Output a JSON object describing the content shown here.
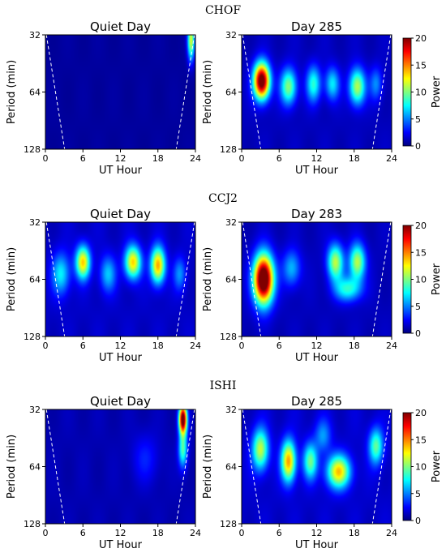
{
  "figure": {
    "colormap": [
      "#00007f",
      "#0000ff",
      "#007fff",
      "#00ffff",
      "#7fff7f",
      "#ffff00",
      "#ff7f00",
      "#ff0000",
      "#7f0000"
    ],
    "dashed_line_color": "#ffffff"
  },
  "chart_data": [
    {
      "type": "heatmap",
      "station": "CHOF",
      "title": "Quiet Day",
      "xlabel": "UT Hour",
      "ylabel": "Period (min)",
      "xticks": [
        "0",
        "6",
        "12",
        "18",
        "24"
      ],
      "yticks": [
        "32",
        "64",
        "128"
      ],
      "xlim": [
        0,
        24
      ],
      "ylim_period": [
        32,
        128
      ],
      "log_y": true,
      "colorbar": null,
      "base": 0.6,
      "blobs": [
        {
          "hour": 23.3,
          "period": 34,
          "power": 11,
          "sx": 0.4,
          "sy": 0.25
        }
      ]
    },
    {
      "type": "heatmap",
      "station": "CHOF",
      "title": "Day 285",
      "xlabel": "UT Hour",
      "ylabel": "Period (min)",
      "xticks": [
        "0",
        "6",
        "12",
        "18",
        "24"
      ],
      "yticks": [
        "32",
        "64",
        "128"
      ],
      "xlim": [
        0,
        24
      ],
      "ylim_period": [
        32,
        128
      ],
      "log_y": true,
      "colorbar": {
        "label": "Power",
        "ticks": [
          "0",
          "5",
          "10",
          "15",
          "20"
        ],
        "range": [
          0,
          20
        ]
      },
      "base": 1.2,
      "blobs": [
        {
          "hour": 3.2,
          "period": 56,
          "power": 21,
          "sx": 0.9,
          "sy": 0.22
        },
        {
          "hour": 7.5,
          "period": 60,
          "power": 9,
          "sx": 0.9,
          "sy": 0.22
        },
        {
          "hour": 11.5,
          "period": 58,
          "power": 7,
          "sx": 0.8,
          "sy": 0.22
        },
        {
          "hour": 14.5,
          "period": 58,
          "power": 6,
          "sx": 0.8,
          "sy": 0.2
        },
        {
          "hour": 18.5,
          "period": 60,
          "power": 10,
          "sx": 0.9,
          "sy": 0.22
        },
        {
          "hour": 21.5,
          "period": 58,
          "power": 4,
          "sx": 0.7,
          "sy": 0.2
        }
      ]
    },
    {
      "type": "heatmap",
      "station": "CCJ2",
      "title": "Quiet Day",
      "xlabel": "UT Hour",
      "ylabel": "Period (min)",
      "xticks": [
        "0",
        "6",
        "12",
        "18",
        "24"
      ],
      "yticks": [
        "32",
        "64",
        "128"
      ],
      "xlim": [
        0,
        24
      ],
      "ylim_period": [
        32,
        128
      ],
      "log_y": true,
      "colorbar": null,
      "base": 1.4,
      "blobs": [
        {
          "hour": 2.5,
          "period": 60,
          "power": 6,
          "sx": 1.0,
          "sy": 0.25
        },
        {
          "hour": 6.0,
          "period": 52,
          "power": 12,
          "sx": 0.8,
          "sy": 0.2
        },
        {
          "hour": 10.0,
          "period": 60,
          "power": 5,
          "sx": 0.9,
          "sy": 0.22
        },
        {
          "hour": 14.0,
          "period": 52,
          "power": 12,
          "sx": 0.9,
          "sy": 0.2
        },
        {
          "hour": 18.0,
          "period": 54,
          "power": 13,
          "sx": 0.8,
          "sy": 0.22
        },
        {
          "hour": 21.5,
          "period": 60,
          "power": 4,
          "sx": 0.7,
          "sy": 0.2
        }
      ]
    },
    {
      "type": "heatmap",
      "station": "CCJ2",
      "title": "Day 283",
      "xlabel": "UT Hour",
      "ylabel": "Period (min)",
      "xticks": [
        "0",
        "6",
        "12",
        "18",
        "24"
      ],
      "yticks": [
        "32",
        "64",
        "128"
      ],
      "xlim": [
        0,
        24
      ],
      "ylim_period": [
        32,
        128
      ],
      "log_y": true,
      "colorbar": {
        "label": "Power",
        "ticks": [
          "0",
          "5",
          "10",
          "15",
          "20"
        ],
        "range": [
          0,
          20
        ]
      },
      "base": 1.2,
      "blobs": [
        {
          "hour": 3.5,
          "period": 64,
          "power": 23,
          "sx": 1.1,
          "sy": 0.3
        },
        {
          "hour": 8.0,
          "period": 56,
          "power": 5,
          "sx": 1.0,
          "sy": 0.22
        },
        {
          "hour": 15.0,
          "period": 52,
          "power": 10,
          "sx": 0.9,
          "sy": 0.22
        },
        {
          "hour": 18.5,
          "period": 52,
          "power": 10,
          "sx": 0.9,
          "sy": 0.22
        },
        {
          "hour": 17.0,
          "period": 72,
          "power": 7,
          "sx": 1.5,
          "sy": 0.15
        }
      ]
    },
    {
      "type": "heatmap",
      "station": "ISHI",
      "title": "Quiet Day",
      "xlabel": "UT Hour",
      "ylabel": "Period (min)",
      "xticks": [
        "0",
        "6",
        "12",
        "18",
        "24"
      ],
      "yticks": [
        "32",
        "64",
        "128"
      ],
      "xlim": [
        0,
        24
      ],
      "ylim_period": [
        32,
        128
      ],
      "log_y": true,
      "colorbar": null,
      "base": 1.0,
      "blobs": [
        {
          "hour": 22.0,
          "period": 36,
          "power": 21,
          "sx": 0.45,
          "sy": 0.18
        },
        {
          "hour": 22.0,
          "period": 52,
          "power": 8,
          "sx": 0.5,
          "sy": 0.22
        },
        {
          "hour": 16.0,
          "period": 58,
          "power": 2,
          "sx": 1.5,
          "sy": 0.3
        }
      ]
    },
    {
      "type": "heatmap",
      "station": "ISHI",
      "title": "Day 285",
      "xlabel": "UT Hour",
      "ylabel": "Period (min)",
      "xticks": [
        "0",
        "6",
        "12",
        "18",
        "24"
      ],
      "yticks": [
        "32",
        "64",
        "128"
      ],
      "xlim": [
        0,
        24
      ],
      "ylim_period": [
        32,
        128
      ],
      "log_y": true,
      "colorbar": {
        "label": "Power",
        "ticks": [
          "0",
          "5",
          "10",
          "15",
          "20"
        ],
        "range": [
          0,
          20
        ]
      },
      "base": 1.5,
      "blobs": [
        {
          "hour": 3.0,
          "period": 52,
          "power": 10,
          "sx": 0.9,
          "sy": 0.25
        },
        {
          "hour": 7.5,
          "period": 60,
          "power": 13,
          "sx": 0.8,
          "sy": 0.25
        },
        {
          "hour": 11.0,
          "period": 60,
          "power": 8,
          "sx": 0.8,
          "sy": 0.22
        },
        {
          "hour": 15.5,
          "period": 68,
          "power": 12,
          "sx": 1.3,
          "sy": 0.2
        },
        {
          "hour": 13.0,
          "period": 44,
          "power": 4,
          "sx": 0.9,
          "sy": 0.2
        },
        {
          "hour": 21.5,
          "period": 50,
          "power": 8,
          "sx": 0.8,
          "sy": 0.22
        }
      ]
    }
  ]
}
